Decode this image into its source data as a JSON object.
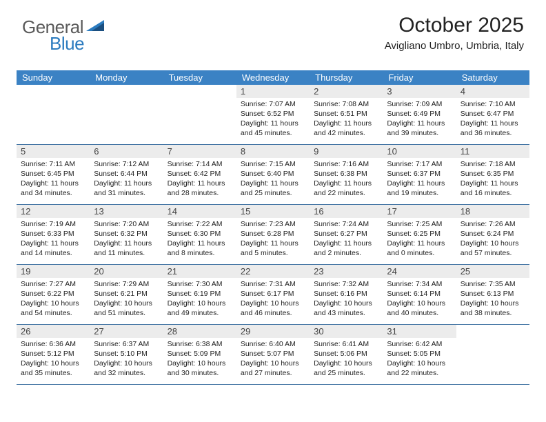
{
  "logo": {
    "text1": "General",
    "text2": "Blue"
  },
  "header": {
    "month": "October 2025",
    "location": "Avigliano Umbro, Umbria, Italy"
  },
  "colors": {
    "header_bg": "#3b82c4",
    "header_text": "#ffffff",
    "daynum_bg": "#ececec",
    "row_border": "#3b6fa0",
    "body_text": "#212121"
  },
  "dow": [
    "Sunday",
    "Monday",
    "Tuesday",
    "Wednesday",
    "Thursday",
    "Friday",
    "Saturday"
  ],
  "weeks": [
    [
      {
        "n": "",
        "sr": "",
        "ss": "",
        "dl1": "",
        "dl2": ""
      },
      {
        "n": "",
        "sr": "",
        "ss": "",
        "dl1": "",
        "dl2": ""
      },
      {
        "n": "",
        "sr": "",
        "ss": "",
        "dl1": "",
        "dl2": ""
      },
      {
        "n": "1",
        "sr": "Sunrise: 7:07 AM",
        "ss": "Sunset: 6:52 PM",
        "dl1": "Daylight: 11 hours",
        "dl2": "and 45 minutes."
      },
      {
        "n": "2",
        "sr": "Sunrise: 7:08 AM",
        "ss": "Sunset: 6:51 PM",
        "dl1": "Daylight: 11 hours",
        "dl2": "and 42 minutes."
      },
      {
        "n": "3",
        "sr": "Sunrise: 7:09 AM",
        "ss": "Sunset: 6:49 PM",
        "dl1": "Daylight: 11 hours",
        "dl2": "and 39 minutes."
      },
      {
        "n": "4",
        "sr": "Sunrise: 7:10 AM",
        "ss": "Sunset: 6:47 PM",
        "dl1": "Daylight: 11 hours",
        "dl2": "and 36 minutes."
      }
    ],
    [
      {
        "n": "5",
        "sr": "Sunrise: 7:11 AM",
        "ss": "Sunset: 6:45 PM",
        "dl1": "Daylight: 11 hours",
        "dl2": "and 34 minutes."
      },
      {
        "n": "6",
        "sr": "Sunrise: 7:12 AM",
        "ss": "Sunset: 6:44 PM",
        "dl1": "Daylight: 11 hours",
        "dl2": "and 31 minutes."
      },
      {
        "n": "7",
        "sr": "Sunrise: 7:14 AM",
        "ss": "Sunset: 6:42 PM",
        "dl1": "Daylight: 11 hours",
        "dl2": "and 28 minutes."
      },
      {
        "n": "8",
        "sr": "Sunrise: 7:15 AM",
        "ss": "Sunset: 6:40 PM",
        "dl1": "Daylight: 11 hours",
        "dl2": "and 25 minutes."
      },
      {
        "n": "9",
        "sr": "Sunrise: 7:16 AM",
        "ss": "Sunset: 6:38 PM",
        "dl1": "Daylight: 11 hours",
        "dl2": "and 22 minutes."
      },
      {
        "n": "10",
        "sr": "Sunrise: 7:17 AM",
        "ss": "Sunset: 6:37 PM",
        "dl1": "Daylight: 11 hours",
        "dl2": "and 19 minutes."
      },
      {
        "n": "11",
        "sr": "Sunrise: 7:18 AM",
        "ss": "Sunset: 6:35 PM",
        "dl1": "Daylight: 11 hours",
        "dl2": "and 16 minutes."
      }
    ],
    [
      {
        "n": "12",
        "sr": "Sunrise: 7:19 AM",
        "ss": "Sunset: 6:33 PM",
        "dl1": "Daylight: 11 hours",
        "dl2": "and 14 minutes."
      },
      {
        "n": "13",
        "sr": "Sunrise: 7:20 AM",
        "ss": "Sunset: 6:32 PM",
        "dl1": "Daylight: 11 hours",
        "dl2": "and 11 minutes."
      },
      {
        "n": "14",
        "sr": "Sunrise: 7:22 AM",
        "ss": "Sunset: 6:30 PM",
        "dl1": "Daylight: 11 hours",
        "dl2": "and 8 minutes."
      },
      {
        "n": "15",
        "sr": "Sunrise: 7:23 AM",
        "ss": "Sunset: 6:28 PM",
        "dl1": "Daylight: 11 hours",
        "dl2": "and 5 minutes."
      },
      {
        "n": "16",
        "sr": "Sunrise: 7:24 AM",
        "ss": "Sunset: 6:27 PM",
        "dl1": "Daylight: 11 hours",
        "dl2": "and 2 minutes."
      },
      {
        "n": "17",
        "sr": "Sunrise: 7:25 AM",
        "ss": "Sunset: 6:25 PM",
        "dl1": "Daylight: 11 hours",
        "dl2": "and 0 minutes."
      },
      {
        "n": "18",
        "sr": "Sunrise: 7:26 AM",
        "ss": "Sunset: 6:24 PM",
        "dl1": "Daylight: 10 hours",
        "dl2": "and 57 minutes."
      }
    ],
    [
      {
        "n": "19",
        "sr": "Sunrise: 7:27 AM",
        "ss": "Sunset: 6:22 PM",
        "dl1": "Daylight: 10 hours",
        "dl2": "and 54 minutes."
      },
      {
        "n": "20",
        "sr": "Sunrise: 7:29 AM",
        "ss": "Sunset: 6:21 PM",
        "dl1": "Daylight: 10 hours",
        "dl2": "and 51 minutes."
      },
      {
        "n": "21",
        "sr": "Sunrise: 7:30 AM",
        "ss": "Sunset: 6:19 PM",
        "dl1": "Daylight: 10 hours",
        "dl2": "and 49 minutes."
      },
      {
        "n": "22",
        "sr": "Sunrise: 7:31 AM",
        "ss": "Sunset: 6:17 PM",
        "dl1": "Daylight: 10 hours",
        "dl2": "and 46 minutes."
      },
      {
        "n": "23",
        "sr": "Sunrise: 7:32 AM",
        "ss": "Sunset: 6:16 PM",
        "dl1": "Daylight: 10 hours",
        "dl2": "and 43 minutes."
      },
      {
        "n": "24",
        "sr": "Sunrise: 7:34 AM",
        "ss": "Sunset: 6:14 PM",
        "dl1": "Daylight: 10 hours",
        "dl2": "and 40 minutes."
      },
      {
        "n": "25",
        "sr": "Sunrise: 7:35 AM",
        "ss": "Sunset: 6:13 PM",
        "dl1": "Daylight: 10 hours",
        "dl2": "and 38 minutes."
      }
    ],
    [
      {
        "n": "26",
        "sr": "Sunrise: 6:36 AM",
        "ss": "Sunset: 5:12 PM",
        "dl1": "Daylight: 10 hours",
        "dl2": "and 35 minutes."
      },
      {
        "n": "27",
        "sr": "Sunrise: 6:37 AM",
        "ss": "Sunset: 5:10 PM",
        "dl1": "Daylight: 10 hours",
        "dl2": "and 32 minutes."
      },
      {
        "n": "28",
        "sr": "Sunrise: 6:38 AM",
        "ss": "Sunset: 5:09 PM",
        "dl1": "Daylight: 10 hours",
        "dl2": "and 30 minutes."
      },
      {
        "n": "29",
        "sr": "Sunrise: 6:40 AM",
        "ss": "Sunset: 5:07 PM",
        "dl1": "Daylight: 10 hours",
        "dl2": "and 27 minutes."
      },
      {
        "n": "30",
        "sr": "Sunrise: 6:41 AM",
        "ss": "Sunset: 5:06 PM",
        "dl1": "Daylight: 10 hours",
        "dl2": "and 25 minutes."
      },
      {
        "n": "31",
        "sr": "Sunrise: 6:42 AM",
        "ss": "Sunset: 5:05 PM",
        "dl1": "Daylight: 10 hours",
        "dl2": "and 22 minutes."
      },
      {
        "n": "",
        "sr": "",
        "ss": "",
        "dl1": "",
        "dl2": ""
      }
    ]
  ]
}
